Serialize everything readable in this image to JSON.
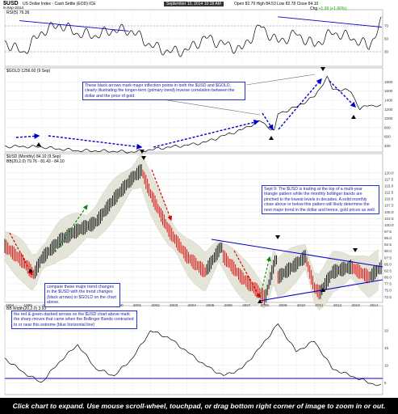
{
  "header": {
    "symbol": "$USD",
    "name": "US Dollar Index - Cash Settle (EOD) ICE",
    "date": "9-Sep-2014",
    "stockcharts_date": "September 10, 2014 10:18 AM",
    "open_label": "Open",
    "open": "82.79",
    "high_label": "High",
    "high": "84.53",
    "low_label": "Low",
    "low": "82.78",
    "close_label": "Close",
    "close": "84.10",
    "change_label": "Chg",
    "change": "+1.36 (+1.66%)"
  },
  "panels": {
    "rsi_label": "RSI(5) 76.36",
    "gold_label": "$GOLD 1256.60 (9 Sep)",
    "usd_label": "$USD (Monthly) 84.10 (9 Sep)",
    "bb_label": "BB(20,2.0) 79.76 - 81.43 - 84.10",
    "bw_label": "BB Width(20,2.0) 3.93"
  },
  "annotations": {
    "arrows_note": "These black arrows mark major inflection points in both the $USD and $GOLD, clearly illustrating the longer-term (primary trend) inverse correlation between the dollar and the price of gold.",
    "sept_note": "Sept 9: The $USD is trading at the top of a multi-year triangle pattern while the monthly bollinger bands are pinched to the lowest levels in decades. A solid monthly close above or below this pattern will likely determine the next major trend in the dollar and hence, gold prices as well.",
    "compare_note": "compare these major trend changes in the $USD with the trend changes (black arrows) in $GOLD on the chart above.",
    "dashed_note": "the red & green dashed arrows on the $USD chart above mark the sharp moves that came when the Bollinger Bands contracted to or near this extreme (blue horizontal line)"
  },
  "footer": "Click chart to expand. Use mouse scroll-wheel, touchpad, or drag bottom right corner of image to zoom in or out.",
  "colors": {
    "up": "#000000",
    "down": "#dd0000",
    "annotation": "#1a1aa6",
    "trend": "#0000cc",
    "band": "#e4e4d8"
  },
  "chart_data": [
    {
      "type": "line",
      "title": "RSI(5) 76.36",
      "x": [
        1994,
        1995,
        1996,
        1997,
        1998,
        1999,
        2000,
        2001,
        2002,
        2003,
        2004,
        2005,
        2006,
        2007,
        2008,
        2009,
        2010,
        2011,
        2012,
        2013,
        2014,
        2014.7
      ],
      "values": [
        45,
        28,
        60,
        72,
        58,
        55,
        64,
        62,
        40,
        30,
        32,
        52,
        42,
        33,
        70,
        45,
        58,
        40,
        60,
        52,
        38,
        76.36
      ],
      "yticks": [
        30,
        50,
        70
      ],
      "ylim": [
        10,
        90
      ]
    },
    {
      "type": "line",
      "title": "$GOLD 1256.60 (9 Sep)",
      "x": [
        1994,
        1995,
        1996,
        1997,
        1998,
        1999,
        2000,
        2001,
        2002,
        2003,
        2004,
        2005,
        2006,
        2007,
        2008,
        2008.8,
        2009,
        2010,
        2011,
        2011.7,
        2012,
        2013,
        2013.5,
        2014,
        2014.7
      ],
      "values": [
        385,
        385,
        375,
        330,
        295,
        290,
        280,
        265,
        315,
        370,
        415,
        480,
        620,
        750,
        950,
        720,
        1100,
        1250,
        1480,
        1900,
        1650,
        1600,
        1200,
        1300,
        1256.6
      ],
      "yticks": [
        400,
        600,
        800,
        1000,
        1200,
        1400,
        1600,
        1800
      ],
      "ylim": [
        300,
        2000
      ]
    },
    {
      "type": "line",
      "title": "$USD (Monthly) 84.10 (9 Sep)",
      "x": [
        1994,
        1995,
        1995.6,
        1996,
        1997,
        1998,
        1999,
        2000,
        2001,
        2001.5,
        2002,
        2003,
        2004,
        2005,
        2005.9,
        2006,
        2007,
        2008,
        2008.3,
        2008.9,
        2009,
        2010,
        2010.5,
        2011,
        2011.3,
        2012,
        2013,
        2014,
        2014.7
      ],
      "values": [
        92,
        86,
        81,
        87,
        94,
        98,
        101,
        110,
        118,
        121,
        112,
        98,
        88,
        82,
        92,
        88,
        80,
        74,
        72,
        88,
        80,
        85,
        88,
        76,
        74,
        82,
        84,
        80,
        84.1
      ],
      "xticks": [
        "1994",
        "1995",
        "1996",
        "1997",
        "1998",
        "1999",
        "2000",
        "2001",
        "2002",
        "2003",
        "2004",
        "2005",
        "2006",
        "2007",
        "2008",
        "2009",
        "2010",
        "2011",
        "2012",
        "2013",
        "2014"
      ],
      "yticks": [
        72.5,
        75.0,
        77.5,
        80.0,
        82.5,
        85.0,
        87.5,
        90.0,
        92.5,
        95.0,
        97.5,
        100.0,
        102.5,
        105.0,
        107.5,
        110.0,
        112.5,
        115.0,
        117.5,
        120.0
      ],
      "ylim": [
        71,
        123
      ]
    },
    {
      "type": "line",
      "title": "BB Width(20,2.0) 3.93",
      "x": [
        1994,
        1995,
        1996,
        1997,
        1998,
        1999,
        2000,
        2001,
        2002,
        2003,
        2004,
        2005,
        2006,
        2007,
        2008,
        2009,
        2010,
        2011,
        2012,
        2013,
        2014,
        2014.7
      ],
      "values": [
        12,
        8,
        5,
        11,
        16,
        9,
        7,
        12,
        20,
        18,
        14,
        10,
        7,
        9,
        15,
        22,
        14,
        17,
        9,
        7,
        5,
        3.93
      ],
      "yticks": [
        5,
        10,
        15,
        20
      ],
      "ylim": [
        2,
        24
      ]
    }
  ]
}
